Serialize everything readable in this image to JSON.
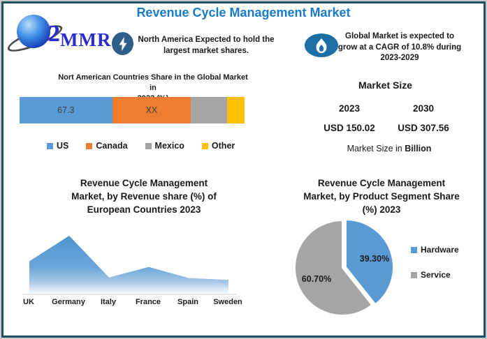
{
  "frame": {
    "border_color": "#204F63",
    "outer_edge_color": "#C9C9C9",
    "background": "#FFFFFF"
  },
  "header": {
    "title": "Revenue Cycle Management Market",
    "title_color": "#187BC8",
    "logo": {
      "swoosh": "2",
      "text": "MMR"
    },
    "highlights": [
      {
        "icon": "lightning-icon",
        "icon_color": "#2E5F8A",
        "lines": [
          "North America Expected to hold the",
          "largest market shares."
        ]
      },
      {
        "icon": "flame-icon",
        "icon_color": "#1D6FA5",
        "lines": [
          "Global Market is expected to",
          "grow at a CAGR of 10.8% during",
          "2023-2029"
        ]
      }
    ]
  },
  "market_size": {
    "heading": "Market Size",
    "columns": [
      {
        "year": "2023",
        "value": "USD 150.02"
      },
      {
        "year": "2030",
        "value": "USD 307.56"
      }
    ],
    "note_prefix": "Market Size in ",
    "note_bold": "Billion"
  },
  "chart_data": [
    {
      "type": "bar",
      "subtype": "stacked-horizontal-single-bar",
      "title": "Nort American Countries Share in the Global Market in 2022 (%)",
      "title_lines": [
        "Nort American Countries Share in the Global Market in",
        "2022 (%)"
      ],
      "categories": [
        "US",
        "Canada",
        "Mexico",
        "Other"
      ],
      "segment_labels": [
        "67.3",
        "XX",
        "",
        ""
      ],
      "values": [
        67.3,
        null,
        null,
        null
      ],
      "visual_width_pct": [
        41.2,
        35.0,
        16.0,
        7.8
      ],
      "colors": [
        "#5B9BD5",
        "#ED7D31",
        "#A5A5A5",
        "#FFC000"
      ],
      "legend_position": "bottom"
    },
    {
      "type": "area",
      "title": "Revenue Cycle Management Market, by Revenue share (%) of European Countries 2023",
      "title_lines": [
        "Revenue Cycle Management",
        "Market, by Revenue share (%) of",
        "European Countries 2023"
      ],
      "categories": [
        "UK",
        "Germany",
        "Italy",
        "France",
        "Spain",
        "Sweden"
      ],
      "values": [
        56,
        100,
        28,
        46,
        27,
        24
      ],
      "values_note": "relative heights; no y-axis shown in source",
      "fill_gradient": [
        "#4D94D0",
        "#6CA6D9",
        "#A8C8E8",
        "#DCE9F5",
        "#FAFCFE"
      ],
      "axis_line_color": "#D6D6D6",
      "grid": false
    },
    {
      "type": "pie",
      "title": "Revenue Cycle Management Market, by Product Segment Share (%) 2023",
      "title_lines": [
        "Revenue Cycle Management",
        "Market, by Product Segment Share",
        "(%) 2023"
      ],
      "labels": [
        "Hardware",
        "Service"
      ],
      "values": [
        39.3,
        60.7
      ],
      "display_labels": [
        "39.30%",
        "60.70%"
      ],
      "colors": [
        "#5B9BD5",
        "#A5A5A5"
      ],
      "legend_position": "right"
    }
  ]
}
